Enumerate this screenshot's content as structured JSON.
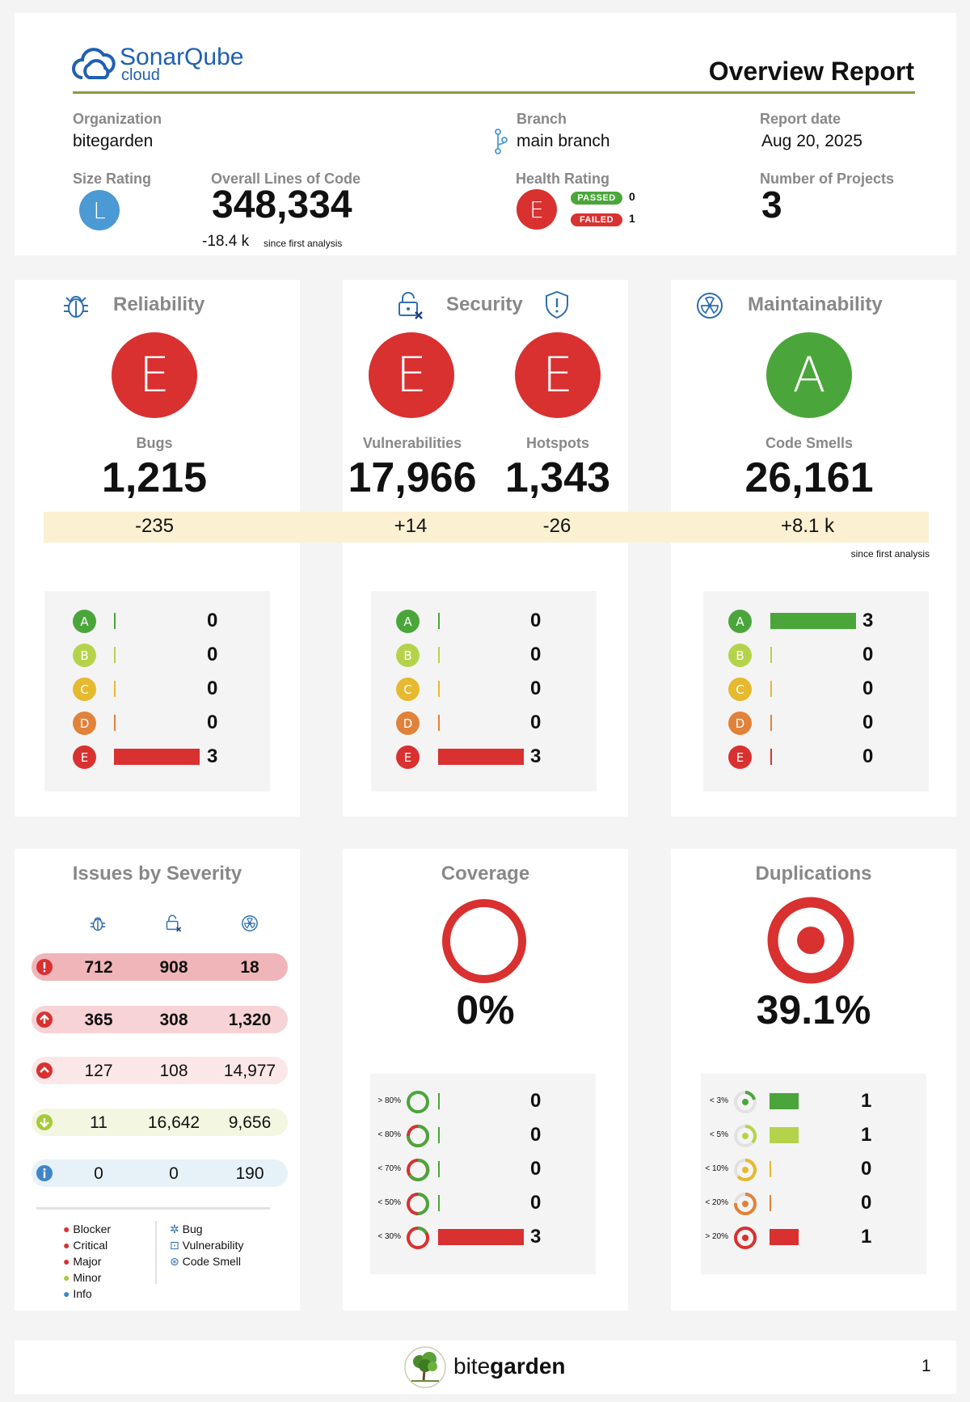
{
  "header": {
    "logo_name": "SonarQube",
    "logo_sub": "cloud",
    "title": "Overview Report",
    "organization_label": "Organization",
    "organization": "bitegarden",
    "branch_label": "Branch",
    "branch": "main branch",
    "report_date_label": "Report date",
    "report_date": "Aug 20, 2025",
    "size_rating_label": "Size Rating",
    "size_rating": "L",
    "loc_label": "Overall Lines of Code",
    "loc": "348,334",
    "loc_delta": "-18.4 k",
    "since_label": "since first analysis",
    "health_label": "Health Rating",
    "health_rating": "E",
    "passed_label": "PASSED",
    "passed_count": "0",
    "failed_label": "FAILED",
    "failed_count": "1",
    "projects_label": "Number of Projects",
    "projects": "3"
  },
  "colors": {
    "A": "#4aa63a",
    "B": "#b5d34a",
    "C": "#e6b92e",
    "D": "#e0823a",
    "E": "#d93030",
    "size_blue": "#4b9ad4",
    "delta_band": "#fbf0d2",
    "header_rule": "#8a9a45"
  },
  "reliability": {
    "title": "Reliability",
    "rating": "E",
    "metric_label": "Bugs",
    "value": "1,215",
    "delta": "-235",
    "distribution": [
      {
        "grade": "A",
        "count": "0"
      },
      {
        "grade": "B",
        "count": "0"
      },
      {
        "grade": "C",
        "count": "0"
      },
      {
        "grade": "D",
        "count": "0"
      },
      {
        "grade": "E",
        "count": "3"
      }
    ]
  },
  "security": {
    "title": "Security",
    "vuln_rating": "E",
    "vuln_label": "Vulnerabilities",
    "vuln_value": "17,966",
    "vuln_delta": "+14",
    "hotspot_rating": "E",
    "hotspot_label": "Hotspots",
    "hotspot_value": "1,343",
    "hotspot_delta": "-26",
    "distribution": [
      {
        "grade": "A",
        "count": "0"
      },
      {
        "grade": "B",
        "count": "0"
      },
      {
        "grade": "C",
        "count": "0"
      },
      {
        "grade": "D",
        "count": "0"
      },
      {
        "grade": "E",
        "count": "3"
      }
    ]
  },
  "maintainability": {
    "title": "Maintainability",
    "rating": "A",
    "metric_label": "Code Smells",
    "value": "26,161",
    "delta": "+8.1 k",
    "since_label": "since first analysis",
    "distribution": [
      {
        "grade": "A",
        "count": "3"
      },
      {
        "grade": "B",
        "count": "0"
      },
      {
        "grade": "C",
        "count": "0"
      },
      {
        "grade": "D",
        "count": "0"
      },
      {
        "grade": "E",
        "count": "0"
      }
    ]
  },
  "severity": {
    "title": "Issues by Severity",
    "rows": [
      {
        "name": "Blocker",
        "bug": "712",
        "vuln": "908",
        "smell": "18"
      },
      {
        "name": "Critical",
        "bug": "365",
        "vuln": "308",
        "smell": "1,320"
      },
      {
        "name": "Major",
        "bug": "127",
        "vuln": "108",
        "smell": "14,977"
      },
      {
        "name": "Minor",
        "bug": "11",
        "vuln": "16,642",
        "smell": "9,656"
      },
      {
        "name": "Info",
        "bug": "0",
        "vuln": "0",
        "smell": "190"
      }
    ],
    "legend_severities": [
      "Blocker",
      "Critical",
      "Major",
      "Minor",
      "Info"
    ],
    "legend_types": [
      "Bug",
      "Vulnerability",
      "Code Smell"
    ]
  },
  "coverage": {
    "title": "Coverage",
    "value": "0%",
    "distribution": [
      {
        "label": "> 80%",
        "count": "0"
      },
      {
        "label": "< 80%",
        "count": "0"
      },
      {
        "label": "< 70%",
        "count": "0"
      },
      {
        "label": "< 50%",
        "count": "0"
      },
      {
        "label": "< 30%",
        "count": "3"
      }
    ]
  },
  "duplications": {
    "title": "Duplications",
    "value": "39.1%",
    "distribution": [
      {
        "label": "< 3%",
        "count": "1"
      },
      {
        "label": "< 5%",
        "count": "1"
      },
      {
        "label": "< 10%",
        "count": "0"
      },
      {
        "label": "< 20%",
        "count": "0"
      },
      {
        "label": "> 20%",
        "count": "1"
      }
    ]
  },
  "footer": {
    "brand_1": "bite",
    "brand_2": "garden",
    "page": "1"
  }
}
